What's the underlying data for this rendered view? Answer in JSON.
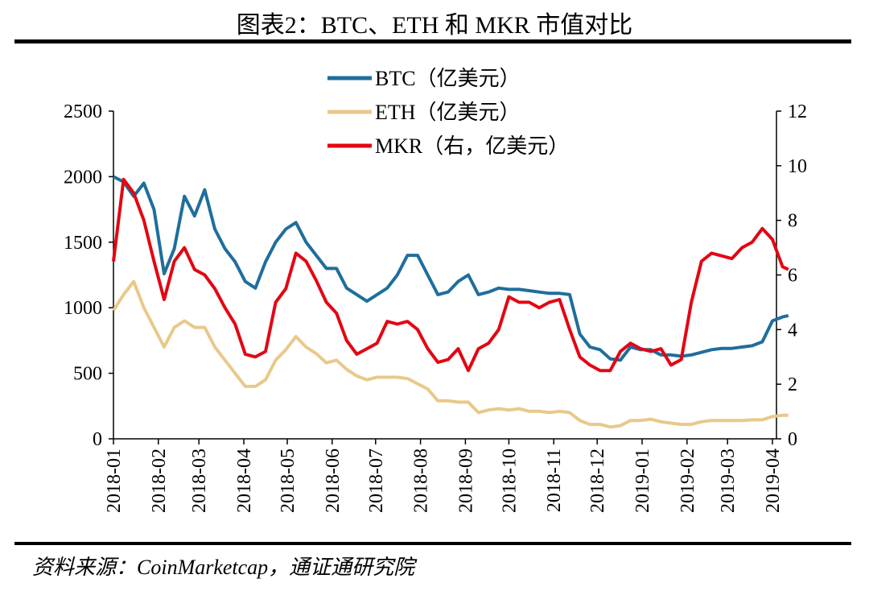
{
  "title": "图表2：BTC、ETH 和 MKR 市值对比",
  "source": "资料来源：CoinMarketcap，通证通研究院",
  "chart_data": {
    "type": "line",
    "title": "图表2：BTC、ETH 和 MKR 市值对比",
    "legend_placement": "top-center",
    "grid": false,
    "y_left": {
      "lim": [
        0,
        2500
      ],
      "ticks": [
        "0",
        "500",
        "1000",
        "1500",
        "2000",
        "2500"
      ]
    },
    "y_right": {
      "lim": [
        0,
        12
      ],
      "ticks": [
        "0",
        "2",
        "4",
        "6",
        "8",
        "10",
        "12"
      ]
    },
    "x_ticks": [
      "2018-01",
      "2018-02",
      "2018-03",
      "2018-04",
      "2018-05",
      "2018-06",
      "2018-07",
      "2018-08",
      "2018-09",
      "2018-10",
      "2018-11",
      "2018-12",
      "2019-01",
      "2019-02",
      "2019-03",
      "2019-04"
    ],
    "x": [
      "2018-01-01",
      "2018-01-08",
      "2018-01-15",
      "2018-01-22",
      "2018-01-29",
      "2018-02-05",
      "2018-02-12",
      "2018-02-19",
      "2018-02-26",
      "2018-03-05",
      "2018-03-12",
      "2018-03-19",
      "2018-03-26",
      "2018-04-02",
      "2018-04-09",
      "2018-04-16",
      "2018-04-23",
      "2018-04-30",
      "2018-05-07",
      "2018-05-14",
      "2018-05-21",
      "2018-05-28",
      "2018-06-04",
      "2018-06-11",
      "2018-06-18",
      "2018-06-25",
      "2018-07-02",
      "2018-07-09",
      "2018-07-16",
      "2018-07-23",
      "2018-07-30",
      "2018-08-06",
      "2018-08-13",
      "2018-08-20",
      "2018-08-27",
      "2018-09-03",
      "2018-09-10",
      "2018-09-17",
      "2018-09-24",
      "2018-10-01",
      "2018-10-08",
      "2018-10-15",
      "2018-10-22",
      "2018-10-29",
      "2018-11-05",
      "2018-11-12",
      "2018-11-19",
      "2018-11-26",
      "2018-12-03",
      "2018-12-10",
      "2018-12-17",
      "2018-12-24",
      "2018-12-31",
      "2019-01-07",
      "2019-01-14",
      "2019-01-21",
      "2019-01-28",
      "2019-02-04",
      "2019-02-11",
      "2019-02-18",
      "2019-02-25",
      "2019-03-04",
      "2019-03-11",
      "2019-03-18",
      "2019-03-25",
      "2019-04-01",
      "2019-04-08",
      "2019-04-12"
    ],
    "series": [
      {
        "name": "BTC（亿美元）",
        "axis": "left",
        "color": "#1F6E9C",
        "values": [
          2000,
          1960,
          1850,
          1950,
          1750,
          1260,
          1450,
          1850,
          1700,
          1900,
          1600,
          1450,
          1350,
          1200,
          1150,
          1350,
          1500,
          1600,
          1650,
          1500,
          1400,
          1300,
          1300,
          1150,
          1100,
          1050,
          1100,
          1150,
          1250,
          1400,
          1400,
          1250,
          1100,
          1120,
          1200,
          1250,
          1100,
          1120,
          1150,
          1140,
          1140,
          1130,
          1120,
          1110,
          1110,
          1100,
          800,
          700,
          680,
          610,
          600,
          700,
          680,
          680,
          640,
          640,
          630,
          640,
          660,
          680,
          690,
          690,
          700,
          710,
          740,
          900,
          930,
          940
        ]
      },
      {
        "name": "ETH（亿美元）",
        "axis": "left",
        "color": "#E8C98A",
        "values": [
          980,
          1100,
          1200,
          1000,
          850,
          700,
          850,
          900,
          850,
          850,
          700,
          600,
          500,
          400,
          400,
          450,
          600,
          680,
          780,
          700,
          650,
          580,
          600,
          530,
          480,
          450,
          470,
          470,
          470,
          460,
          420,
          380,
          290,
          290,
          280,
          280,
          200,
          220,
          230,
          220,
          230,
          210,
          210,
          200,
          210,
          200,
          140,
          110,
          110,
          90,
          100,
          140,
          140,
          150,
          130,
          120,
          110,
          110,
          130,
          140,
          140,
          140,
          140,
          145,
          145,
          170,
          180,
          180
        ]
      },
      {
        "name": "MKR（右，亿美元）",
        "axis": "right",
        "color": "#E30613",
        "values": [
          6.5,
          9.5,
          9.0,
          8.0,
          6.5,
          5.1,
          6.5,
          7.0,
          6.2,
          6.0,
          5.5,
          4.8,
          4.2,
          3.1,
          3.0,
          3.2,
          5.0,
          5.5,
          6.8,
          6.5,
          5.8,
          5.0,
          4.6,
          3.6,
          3.1,
          3.3,
          3.5,
          4.3,
          4.2,
          4.3,
          4.0,
          3.3,
          2.8,
          2.9,
          3.3,
          2.5,
          3.3,
          3.5,
          4.0,
          5.2,
          5.0,
          5.0,
          4.8,
          5.0,
          5.1,
          4.0,
          3.0,
          2.7,
          2.5,
          2.5,
          3.2,
          3.5,
          3.3,
          3.2,
          3.3,
          2.7,
          2.9,
          5.0,
          6.5,
          6.8,
          6.7,
          6.6,
          7.0,
          7.2,
          7.7,
          7.3,
          6.3,
          6.2
        ]
      }
    ]
  }
}
